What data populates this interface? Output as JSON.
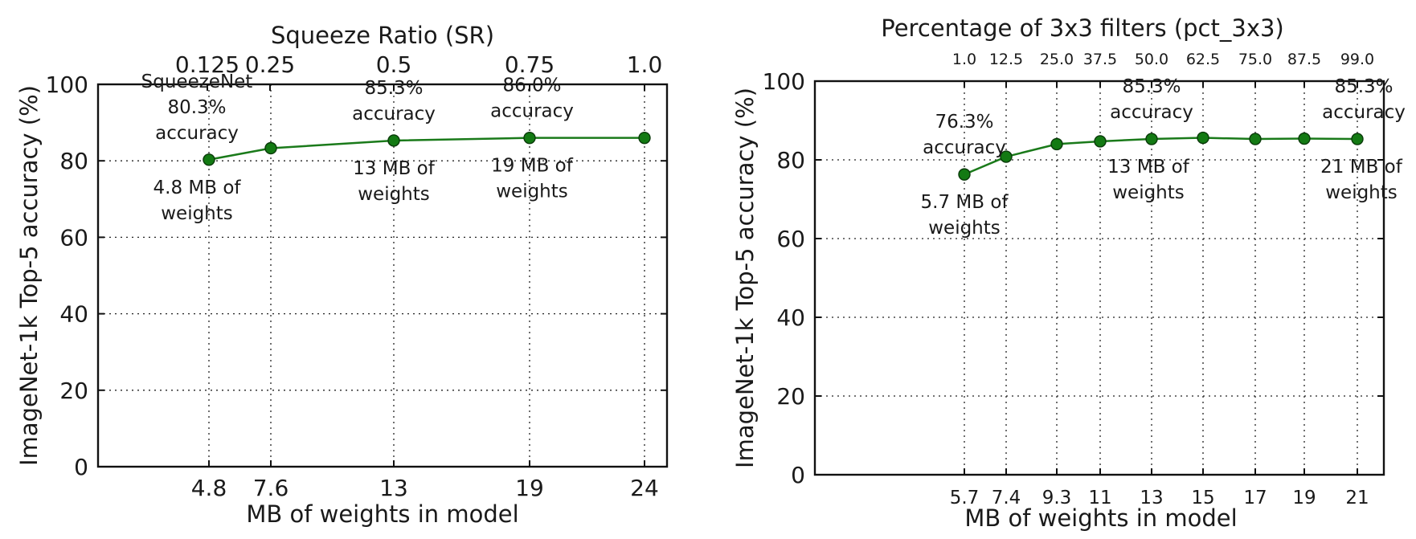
{
  "chart_data": [
    {
      "type": "line",
      "xlabel": "MB of weights in model",
      "ylabel": "ImageNet-1k Top-5 accuracy (%)",
      "top_axis_label": "Squeeze Ratio (SR)",
      "ylim": [
        0,
        100
      ],
      "y_ticks": [
        "0",
        "20",
        "40",
        "60",
        "80",
        "100"
      ],
      "x_ticks": [
        "4.8",
        "7.6",
        "13",
        "19",
        "24"
      ],
      "top_ticks": [
        "0.125",
        "0.25",
        "0.5",
        "0.75",
        "1.0"
      ],
      "grid": true,
      "series": [
        {
          "x": [
            4.8,
            7.6,
            13,
            19,
            24
          ],
          "y": [
            80.3,
            83.3,
            85.3,
            86.0,
            86.0
          ],
          "color": "#137a13"
        }
      ],
      "annotations": [
        {
          "lines": [
            "SqueezeNet",
            "80.3%",
            "accuracy"
          ],
          "x": 4.8,
          "y": 80.3,
          "pos": "above"
        },
        {
          "lines": [
            "4.8 MB of",
            "weights"
          ],
          "x": 4.8,
          "y": 80.3,
          "pos": "below"
        },
        {
          "lines": [
            "85.3%",
            "accuracy"
          ],
          "x": 13,
          "y": 85.3,
          "pos": "above"
        },
        {
          "lines": [
            "13 MB of",
            "weights"
          ],
          "x": 13,
          "y": 85.3,
          "pos": "below"
        },
        {
          "lines": [
            "86.0%",
            "accuracy"
          ],
          "x": 19,
          "y": 86.0,
          "pos": "above"
        },
        {
          "lines": [
            "19 MB of",
            "weights"
          ],
          "x": 19,
          "y": 86.0,
          "pos": "below"
        }
      ]
    },
    {
      "type": "line",
      "xlabel": "MB of weights in model",
      "ylabel": "ImageNet-1k Top-5 accuracy (%)",
      "top_axis_label": "Percentage of 3x3 filters (pct_3x3)",
      "ylim": [
        0,
        100
      ],
      "y_ticks": [
        "0",
        "20",
        "40",
        "60",
        "80",
        "100"
      ],
      "x_ticks": [
        "5.7",
        "7.4",
        "9.3",
        "11",
        "13",
        "15",
        "17",
        "19",
        "21"
      ],
      "top_ticks": [
        "1.0",
        "12.5",
        "25.0",
        "37.5",
        "50.0",
        "62.5",
        "75.0",
        "87.5",
        "99.0"
      ],
      "grid": true,
      "series": [
        {
          "x": [
            5.7,
            7.4,
            9.3,
            11,
            13,
            15,
            17,
            19,
            21
          ],
          "y": [
            76.3,
            80.8,
            84.0,
            84.7,
            85.3,
            85.6,
            85.3,
            85.4,
            85.3
          ],
          "color": "#137a13"
        }
      ],
      "annotations": [
        {
          "lines": [
            "76.3%",
            "accuracy"
          ],
          "x": 5.7,
          "y": 76.3,
          "pos": "above"
        },
        {
          "lines": [
            "5.7 MB of",
            "weights"
          ],
          "x": 5.7,
          "y": 76.3,
          "pos": "below"
        },
        {
          "lines": [
            "85.3%",
            "accuracy"
          ],
          "x": 13,
          "y": 85.3,
          "pos": "above"
        },
        {
          "lines": [
            "13 MB of",
            "weights"
          ],
          "x": 13,
          "y": 85.3,
          "pos": "below"
        },
        {
          "lines": [
            "85.3%",
            "accuracy"
          ],
          "x": 21,
          "y": 85.3,
          "pos": "above"
        },
        {
          "lines": [
            "21 MB of",
            "weights"
          ],
          "x": 21,
          "y": 85.3,
          "pos": "below"
        }
      ]
    }
  ]
}
